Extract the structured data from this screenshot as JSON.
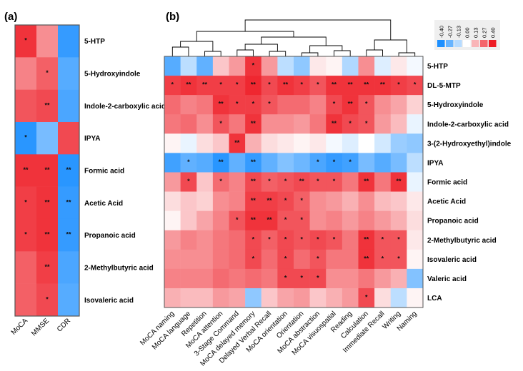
{
  "chart_data": [
    {
      "type": "heatmap",
      "panel_label": "(a)",
      "rows": [
        "5-HTP",
        "5-Hydroxyindole",
        "Indole-2-carboxylic acid",
        "IPYA",
        "Formic acid",
        "Acetic Acid",
        "Propanoic acid",
        "2-Methylbutyric acid",
        "Isovaleric acid"
      ],
      "columns": [
        "MoCA",
        "MMSE",
        "CDR"
      ],
      "values": [
        [
          0.36,
          0.2,
          -0.36
        ],
        [
          0.22,
          0.28,
          -0.3
        ],
        [
          0.3,
          0.32,
          -0.32
        ],
        [
          -0.38,
          -0.24,
          0.32
        ],
        [
          0.36,
          0.36,
          -0.38
        ],
        [
          0.34,
          0.36,
          -0.36
        ],
        [
          0.34,
          0.36,
          -0.36
        ],
        [
          0.28,
          0.34,
          -0.32
        ],
        [
          0.28,
          0.32,
          -0.3
        ]
      ],
      "significance": [
        [
          "*",
          "",
          ""
        ],
        [
          "",
          "*",
          ""
        ],
        [
          "",
          "**",
          ""
        ],
        [
          "*",
          "",
          ""
        ],
        [
          "**",
          "**",
          "**"
        ],
        [
          "*",
          "**",
          "**"
        ],
        [
          "*",
          "**",
          "**"
        ],
        [
          "",
          "**",
          ""
        ],
        [
          "",
          "*",
          ""
        ]
      ]
    },
    {
      "type": "heatmap",
      "panel_label": "(b)",
      "rows": [
        "5-HTP",
        "DL-5-MTP",
        "5-Hydroxyindole",
        "Indole-2-carboxylic acid",
        "3-(2-Hydroxyethyl)indole",
        "IPYA",
        "Formic acid",
        "Acetic Acid",
        "Propanoic acid",
        "2-Methylbutyric acid",
        "Isovaleric acid",
        "Valeric acid",
        "LCA"
      ],
      "columns": [
        "MoCA naming",
        "MoCA language",
        "Repetition",
        "MoCA attention",
        "3-Stage Command",
        "MoCA delayed memory",
        "Delayed Verbal Recall",
        "MoCA orientation",
        "Orientation",
        "MoCA abstraction",
        "MoCA visuospatial",
        "Reading",
        "Calculation",
        "Immediate Recall",
        "Writing",
        "Naming"
      ],
      "values": [
        [
          -0.3,
          -0.12,
          -0.28,
          0.1,
          0.18,
          0.36,
          0.18,
          -0.12,
          -0.2,
          0.04,
          0.02,
          -0.14,
          0.2,
          -0.06,
          0.04,
          -0.02
        ],
        [
          0.34,
          0.36,
          0.34,
          0.34,
          0.34,
          0.38,
          0.32,
          0.36,
          0.34,
          0.3,
          0.36,
          0.36,
          0.36,
          0.36,
          0.34,
          0.32
        ],
        [
          0.26,
          0.22,
          0.24,
          0.36,
          0.34,
          0.34,
          0.3,
          0.26,
          0.26,
          0.22,
          0.32,
          0.36,
          0.3,
          0.2,
          0.16,
          0.08
        ],
        [
          0.24,
          0.26,
          0.2,
          0.3,
          0.24,
          0.36,
          0.2,
          0.2,
          0.18,
          0.24,
          0.36,
          0.32,
          0.3,
          0.18,
          0.12,
          -0.04
        ],
        [
          0.02,
          -0.04,
          0.06,
          0.1,
          0.36,
          0.14,
          0.06,
          0.04,
          0.02,
          0.04,
          -0.02,
          -0.06,
          0.0,
          -0.08,
          -0.18,
          -0.2
        ],
        [
          -0.34,
          -0.28,
          -0.3,
          -0.38,
          -0.28,
          -0.36,
          -0.28,
          -0.22,
          -0.26,
          -0.32,
          -0.36,
          -0.34,
          -0.24,
          -0.3,
          -0.24,
          -0.12
        ],
        [
          0.18,
          0.32,
          0.1,
          0.26,
          0.22,
          0.32,
          0.28,
          0.3,
          0.32,
          0.3,
          0.3,
          0.24,
          0.36,
          0.24,
          0.36,
          -0.04
        ],
        [
          0.06,
          0.1,
          0.08,
          0.2,
          0.22,
          0.34,
          0.34,
          0.32,
          0.28,
          0.2,
          0.18,
          0.14,
          0.2,
          0.12,
          0.1,
          0.04
        ],
        [
          0.02,
          0.1,
          0.16,
          0.22,
          0.3,
          0.36,
          0.36,
          0.3,
          0.3,
          0.2,
          0.22,
          0.18,
          0.22,
          0.18,
          0.14,
          0.06
        ],
        [
          0.18,
          0.22,
          0.2,
          0.24,
          0.26,
          0.32,
          0.28,
          0.32,
          0.3,
          0.32,
          0.3,
          0.24,
          0.36,
          0.3,
          0.3,
          0.04
        ],
        [
          0.2,
          0.2,
          0.2,
          0.24,
          0.26,
          0.32,
          0.26,
          0.32,
          0.26,
          0.3,
          0.24,
          0.24,
          0.36,
          0.3,
          0.3,
          0.02
        ],
        [
          0.22,
          0.22,
          0.22,
          0.26,
          0.24,
          0.26,
          0.24,
          0.32,
          0.32,
          0.32,
          0.2,
          0.2,
          0.24,
          0.18,
          0.14,
          -0.22
        ],
        [
          0.14,
          0.12,
          0.12,
          0.18,
          0.16,
          -0.2,
          0.1,
          0.16,
          0.18,
          0.1,
          0.14,
          0.18,
          0.32,
          0.06,
          -0.12,
          0.02
        ]
      ],
      "significance": [
        [
          "",
          "",
          "",
          "",
          "",
          "*",
          "",
          "",
          "",
          "",
          "",
          "",
          "",
          "",
          "",
          ""
        ],
        [
          "*",
          "**",
          "**",
          "*",
          "*",
          "**",
          "*",
          "**",
          "*",
          "*",
          "**",
          "**",
          "**",
          "**",
          "*",
          "*"
        ],
        [
          "",
          "",
          "",
          "**",
          "*",
          "*",
          "*",
          "",
          "",
          "",
          "*",
          "**",
          "*",
          "",
          "",
          ""
        ],
        [
          "",
          "",
          "",
          "*",
          "",
          "**",
          "",
          "",
          "",
          "",
          "**",
          "*",
          "*",
          "",
          "",
          ""
        ],
        [
          "",
          "",
          "",
          "",
          "**",
          "",
          "",
          "",
          "",
          "",
          "",
          "",
          "",
          "",
          "",
          ""
        ],
        [
          "",
          "*",
          "",
          "**",
          "",
          "**",
          "",
          "",
          "",
          "*",
          "*",
          "*",
          "",
          "",
          "",
          ""
        ],
        [
          "",
          "*",
          "",
          "*",
          "",
          "**",
          "*",
          "*",
          "**",
          "*",
          "*",
          "",
          "**",
          "",
          "**",
          ""
        ],
        [
          "",
          "",
          "",
          "",
          "",
          "**",
          "**",
          "*",
          "*",
          "",
          "",
          "",
          "",
          "",
          "",
          ""
        ],
        [
          "",
          "",
          "",
          "",
          "*",
          "**",
          "**",
          "*",
          "*",
          "",
          "",
          "",
          "",
          "",
          "",
          ""
        ],
        [
          "",
          "",
          "",
          "",
          "",
          "*",
          "*",
          "*",
          "*",
          "*",
          "*",
          "",
          "**",
          "*",
          "*",
          ""
        ],
        [
          "",
          "",
          "",
          "",
          "",
          "*",
          "",
          "*",
          "",
          "*",
          "",
          "",
          "**",
          "*",
          "*",
          ""
        ],
        [
          "",
          "",
          "",
          "",
          "",
          "",
          "",
          "*",
          "*",
          "*",
          "",
          "",
          "",
          "",
          "",
          ""
        ],
        [
          "",
          "",
          "",
          "",
          "",
          "",
          "",
          "",
          "",
          "",
          "",
          "",
          "*",
          "",
          "",
          ""
        ]
      ]
    }
  ],
  "color_scale": {
    "ticks": [
      "-0.40",
      "-0.27",
      "-0.13",
      "0.00",
      "0.13",
      "0.27",
      "0.40"
    ],
    "range": [
      -0.4,
      0.4
    ],
    "low_color": "#1e90ff",
    "mid_color": "#ffffff",
    "high_color": "#ee1c25"
  },
  "colors": {
    "border": "#555555",
    "tree": "#000000"
  }
}
